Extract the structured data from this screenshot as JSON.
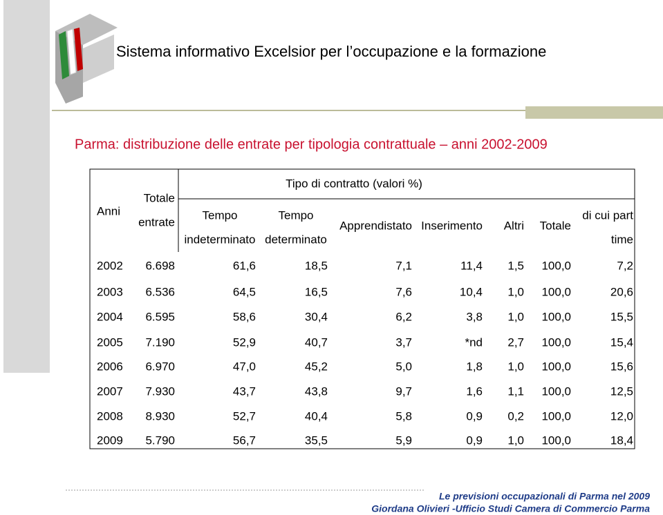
{
  "header": {
    "title": "Sistema informativo Excelsior per l’occupazione e la formazione"
  },
  "subtitle": "Parma: distribuzione delle entrate per tipologia contrattuale – anni 2002-2009",
  "table": {
    "group_header": "Tipo di contratto (valori %)",
    "columns": [
      [
        "Anni"
      ],
      [
        "Totale",
        "entrate"
      ],
      [
        "Tempo",
        "indeterminato"
      ],
      [
        "Tempo",
        "determinato"
      ],
      [
        "Apprendistato"
      ],
      [
        "Inserimento"
      ],
      [
        "Altri"
      ],
      [
        "Totale"
      ],
      [
        "di cui part",
        "time"
      ]
    ],
    "rows": [
      [
        "2002",
        "6.698",
        "61,6",
        "18,5",
        "7,1",
        "11,4",
        "1,5",
        "100,0",
        "7,2"
      ],
      [
        "2003",
        "6.536",
        "64,5",
        "16,5",
        "7,6",
        "10,4",
        "1,0",
        "100,0",
        "20,6"
      ],
      [
        "2004",
        "6.595",
        "58,6",
        "30,4",
        "6,2",
        "3,8",
        "1,0",
        "100,0",
        "15,5"
      ],
      [
        "2005",
        "7.190",
        "52,9",
        "40,7",
        "3,7",
        "*nd",
        "2,7",
        "100,0",
        "15,4"
      ],
      [
        "2006",
        "6.970",
        "47,0",
        "45,2",
        "5,0",
        "1,8",
        "1,0",
        "100,0",
        "15,6"
      ],
      [
        "2007",
        "7.930",
        "43,7",
        "43,8",
        "9,7",
        "1,6",
        "1,1",
        "100,0",
        "12,5"
      ],
      [
        "2008",
        "8.930",
        "52,7",
        "40,4",
        "5,8",
        "0,9",
        "0,2",
        "100,0",
        "12,0"
      ],
      [
        "2009",
        "5.790",
        "56,7",
        "35,5",
        "5,9",
        "0,9",
        "1,0",
        "100,0",
        "18,4"
      ]
    ]
  },
  "footer": {
    "line1": "Le previsioni occupazionali di Parma nel 2009",
    "line2": "Giordana Olivieri -Ufficio Studi Camera di Commercio Parma"
  }
}
